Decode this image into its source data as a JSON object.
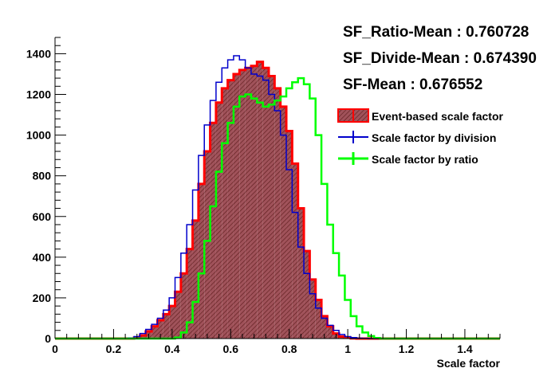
{
  "chart_data": {
    "type": "histogram",
    "title": "",
    "xlabel": "Scale factor",
    "ylabel": "",
    "xlim": [
      0,
      1.52
    ],
    "ylim": [
      0,
      1480
    ],
    "x_ticks": [
      "0",
      "0.2",
      "0.4",
      "0.6",
      "0.8",
      "1",
      "1.2",
      "1.4"
    ],
    "y_ticks": [
      "0",
      "200",
      "400",
      "600",
      "800",
      "1000",
      "1200",
      "1400"
    ],
    "annotations": [
      "SF_Ratio-Mean : 0.760728",
      "SF_Divide-Mean : 0.674390",
      "SF-Mean : 0.676552"
    ],
    "legend_position": "right",
    "series": [
      {
        "name": "Event-based scale factor",
        "color": "#ff0000",
        "fill": "hatched",
        "x": [
          0.28,
          0.3,
          0.32,
          0.34,
          0.36,
          0.38,
          0.4,
          0.42,
          0.44,
          0.46,
          0.48,
          0.5,
          0.52,
          0.54,
          0.56,
          0.58,
          0.6,
          0.62,
          0.64,
          0.66,
          0.68,
          0.7,
          0.72,
          0.74,
          0.76,
          0.78,
          0.8,
          0.82,
          0.84,
          0.86,
          0.88,
          0.9,
          0.92,
          0.94,
          0.96,
          0.98,
          1.0,
          1.02
        ],
        "values": [
          5,
          15,
          35,
          60,
          90,
          120,
          160,
          230,
          320,
          440,
          580,
          760,
          920,
          1060,
          1160,
          1230,
          1270,
          1300,
          1320,
          1330,
          1340,
          1360,
          1330,
          1290,
          1230,
          1140,
          1020,
          860,
          640,
          430,
          290,
          190,
          110,
          60,
          25,
          10,
          4,
          1
        ]
      },
      {
        "name": "Scale factor by division",
        "color": "#0000cc",
        "x": [
          0.26,
          0.28,
          0.3,
          0.32,
          0.34,
          0.36,
          0.38,
          0.4,
          0.42,
          0.44,
          0.46,
          0.48,
          0.5,
          0.52,
          0.54,
          0.56,
          0.58,
          0.6,
          0.62,
          0.64,
          0.66,
          0.68,
          0.7,
          0.72,
          0.74,
          0.76,
          0.78,
          0.8,
          0.82,
          0.84,
          0.86,
          0.88,
          0.9,
          0.92,
          0.94,
          0.96,
          0.98,
          1.0,
          1.02,
          1.04,
          1.06
        ],
        "values": [
          3,
          10,
          25,
          45,
          70,
          100,
          140,
          200,
          300,
          420,
          560,
          730,
          900,
          1050,
          1170,
          1260,
          1330,
          1370,
          1390,
          1370,
          1330,
          1300,
          1290,
          1270,
          1200,
          1120,
          1000,
          830,
          620,
          450,
          320,
          220,
          150,
          100,
          65,
          40,
          20,
          10,
          5,
          2,
          1
        ]
      },
      {
        "name": "Scale factor by ratio",
        "color": "#00ff00",
        "x": [
          0.42,
          0.44,
          0.46,
          0.48,
          0.5,
          0.52,
          0.54,
          0.56,
          0.58,
          0.6,
          0.62,
          0.64,
          0.66,
          0.68,
          0.7,
          0.72,
          0.74,
          0.76,
          0.78,
          0.8,
          0.82,
          0.84,
          0.86,
          0.88,
          0.9,
          0.92,
          0.94,
          0.96,
          0.98,
          1.0,
          1.02,
          1.04,
          1.06,
          1.08,
          1.1
        ],
        "values": [
          5,
          30,
          80,
          180,
          320,
          480,
          650,
          820,
          960,
          1060,
          1140,
          1190,
          1200,
          1180,
          1160,
          1140,
          1150,
          1170,
          1190,
          1230,
          1260,
          1280,
          1250,
          1180,
          1000,
          760,
          560,
          420,
          310,
          190,
          110,
          60,
          30,
          12,
          3
        ]
      }
    ]
  }
}
